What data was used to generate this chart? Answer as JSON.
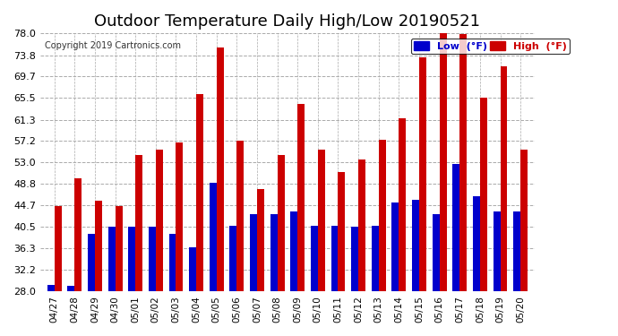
{
  "title": "Outdoor Temperature Daily High/Low 20190521",
  "copyright": "Copyright 2019 Cartronics.com",
  "dates": [
    "04/27",
    "04/28",
    "04/29",
    "04/30",
    "05/01",
    "05/02",
    "05/03",
    "05/04",
    "05/05",
    "05/06",
    "05/07",
    "05/08",
    "05/09",
    "05/10",
    "05/11",
    "05/12",
    "05/13",
    "05/14",
    "05/15",
    "05/16",
    "05/17",
    "05/18",
    "05/19",
    "05/20"
  ],
  "highs": [
    44.6,
    50.0,
    45.5,
    44.6,
    54.5,
    55.4,
    56.8,
    66.2,
    75.2,
    57.2,
    47.8,
    54.5,
    64.4,
    55.4,
    51.1,
    53.6,
    57.4,
    61.5,
    73.4,
    78.6,
    77.9,
    65.5,
    71.6,
    55.4
  ],
  "lows": [
    29.3,
    29.1,
    39.2,
    40.5,
    40.5,
    40.5,
    39.2,
    36.5,
    49.1,
    40.7,
    43.0,
    43.0,
    43.5,
    40.7,
    40.7,
    40.5,
    40.7,
    45.3,
    45.7,
    43.0,
    52.7,
    46.4,
    43.5,
    43.5
  ],
  "ylim": [
    28.0,
    78.0
  ],
  "yticks": [
    28.0,
    32.2,
    36.3,
    40.5,
    44.7,
    48.8,
    53.0,
    57.2,
    61.3,
    65.5,
    69.7,
    73.8,
    78.0
  ],
  "high_color": "#cc0000",
  "low_color": "#0000cc",
  "bg_color": "#ffffff",
  "grid_color": "#aaaaaa",
  "title_fontsize": 13,
  "bar_width": 0.35,
  "legend_high_label": "High  (°F)",
  "legend_low_label": "Low  (°F)"
}
